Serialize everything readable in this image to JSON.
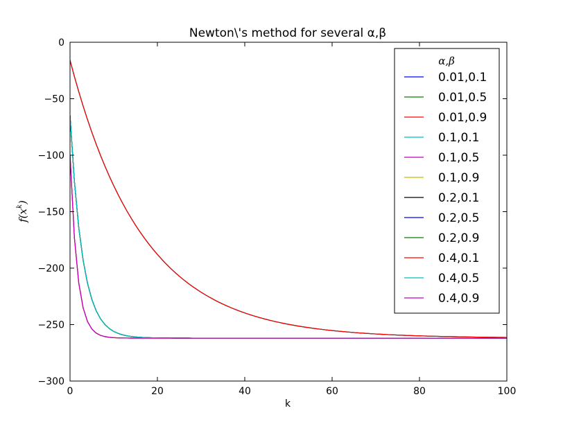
{
  "chart_data": {
    "type": "line",
    "title": "Newton\\'s method for several α,β",
    "xlabel": "k",
    "ylabel": "f(x^k)",
    "xlim": [
      0,
      100
    ],
    "ylim": [
      -300,
      0
    ],
    "xticks": [
      "0",
      "20",
      "40",
      "60",
      "80",
      "100"
    ],
    "yticks": [
      "0",
      "−50",
      "−100",
      "−150",
      "−200",
      "−250",
      "−300"
    ],
    "grid": false,
    "legend_title": "α,β",
    "legend_position": "top-right",
    "optimum": -262,
    "series": [
      {
        "name": "0.01,0.1",
        "color": "#0000ff",
        "start": -16,
        "rate": 0.06
      },
      {
        "name": "0.01,0.5",
        "color": "#008000",
        "start": -16,
        "rate": 0.06
      },
      {
        "name": "0.01,0.9",
        "color": "#ff0000",
        "start": -16,
        "rate": 0.06
      },
      {
        "name": "0.1,0.1",
        "color": "#00bfbf",
        "start": -65,
        "rate": 0.35
      },
      {
        "name": "0.1,0.5",
        "color": "#bf00bf",
        "start": -100,
        "rate": 0.6
      },
      {
        "name": "0.1,0.9",
        "color": "#bfbf00",
        "start": -65,
        "rate": 0.35
      },
      {
        "name": "0.2,0.1",
        "color": "#000000",
        "start": -65,
        "rate": 0.35
      },
      {
        "name": "0.2,0.5",
        "color": "#0000ff",
        "start": -65,
        "rate": 0.35
      },
      {
        "name": "0.2,0.9",
        "color": "#008000",
        "start": -65,
        "rate": 0.35
      },
      {
        "name": "0.4,0.1",
        "color": "#ff0000",
        "start": -100,
        "rate": 0.6
      },
      {
        "name": "0.4,0.5",
        "color": "#00bfbf",
        "start": -65,
        "rate": 0.35
      },
      {
        "name": "0.4,0.9",
        "color": "#bf00bf",
        "start": -100,
        "rate": 0.6
      }
    ]
  }
}
